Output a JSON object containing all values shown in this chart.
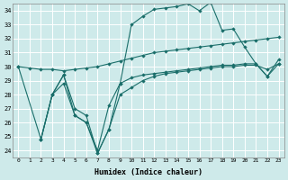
{
  "xlabel": "Humidex (Indice chaleur)",
  "background_color": "#ceeaea",
  "grid_color": "#ffffff",
  "line_color": "#1a6e6a",
  "xlim": [
    -0.5,
    23.5
  ],
  "ylim": [
    23.5,
    34.5
  ],
  "xticks": [
    0,
    1,
    2,
    3,
    4,
    5,
    6,
    7,
    8,
    9,
    10,
    11,
    12,
    13,
    14,
    15,
    16,
    17,
    18,
    19,
    20,
    21,
    22,
    23
  ],
  "yticks": [
    24,
    25,
    26,
    27,
    28,
    29,
    30,
    31,
    32,
    33,
    34
  ],
  "line1_x": [
    0,
    1,
    2,
    3,
    4,
    5,
    6,
    7,
    8,
    9,
    10,
    11,
    12,
    13,
    14,
    15,
    16,
    17,
    18,
    19,
    20,
    21,
    22,
    23
  ],
  "line1_y": [
    30.0,
    29.9,
    29.8,
    29.8,
    29.7,
    29.8,
    29.9,
    30.0,
    30.2,
    30.4,
    30.6,
    30.8,
    31.0,
    31.1,
    31.2,
    31.3,
    31.4,
    31.5,
    31.6,
    31.7,
    31.8,
    31.9,
    32.0,
    32.1
  ],
  "line2_x": [
    2,
    3,
    4,
    5,
    6,
    7,
    8,
    9,
    10,
    11,
    12,
    13,
    14,
    15,
    16,
    17,
    18,
    19,
    20,
    21,
    22,
    23
  ],
  "line2_y": [
    24.8,
    28.0,
    29.4,
    27.0,
    26.5,
    23.8,
    25.5,
    28.8,
    33.0,
    33.6,
    34.1,
    34.2,
    34.3,
    34.5,
    34.0,
    34.6,
    32.6,
    32.7,
    31.4,
    30.2,
    29.3,
    30.5
  ],
  "line3_x": [
    2,
    3,
    4,
    5,
    6,
    7,
    8,
    9,
    10,
    11,
    12,
    13,
    14,
    15,
    16,
    17,
    18,
    19,
    20,
    21,
    22,
    23
  ],
  "line3_y": [
    24.8,
    28.0,
    28.8,
    26.5,
    26.0,
    24.0,
    27.2,
    28.8,
    29.2,
    29.4,
    29.5,
    29.6,
    29.7,
    29.8,
    29.9,
    30.0,
    30.1,
    30.1,
    30.2,
    30.2,
    29.3,
    30.2
  ],
  "line4_x": [
    0,
    2,
    3,
    4,
    5,
    6,
    7,
    8,
    9,
    10,
    11,
    12,
    13,
    14,
    15,
    16,
    17,
    18,
    19,
    20,
    21,
    22,
    23
  ],
  "line4_y": [
    30.0,
    24.8,
    28.0,
    29.4,
    26.5,
    26.0,
    23.8,
    25.5,
    28.0,
    28.5,
    29.0,
    29.3,
    29.5,
    29.6,
    29.7,
    29.8,
    29.9,
    30.0,
    30.0,
    30.1,
    30.1,
    29.8,
    30.2
  ]
}
